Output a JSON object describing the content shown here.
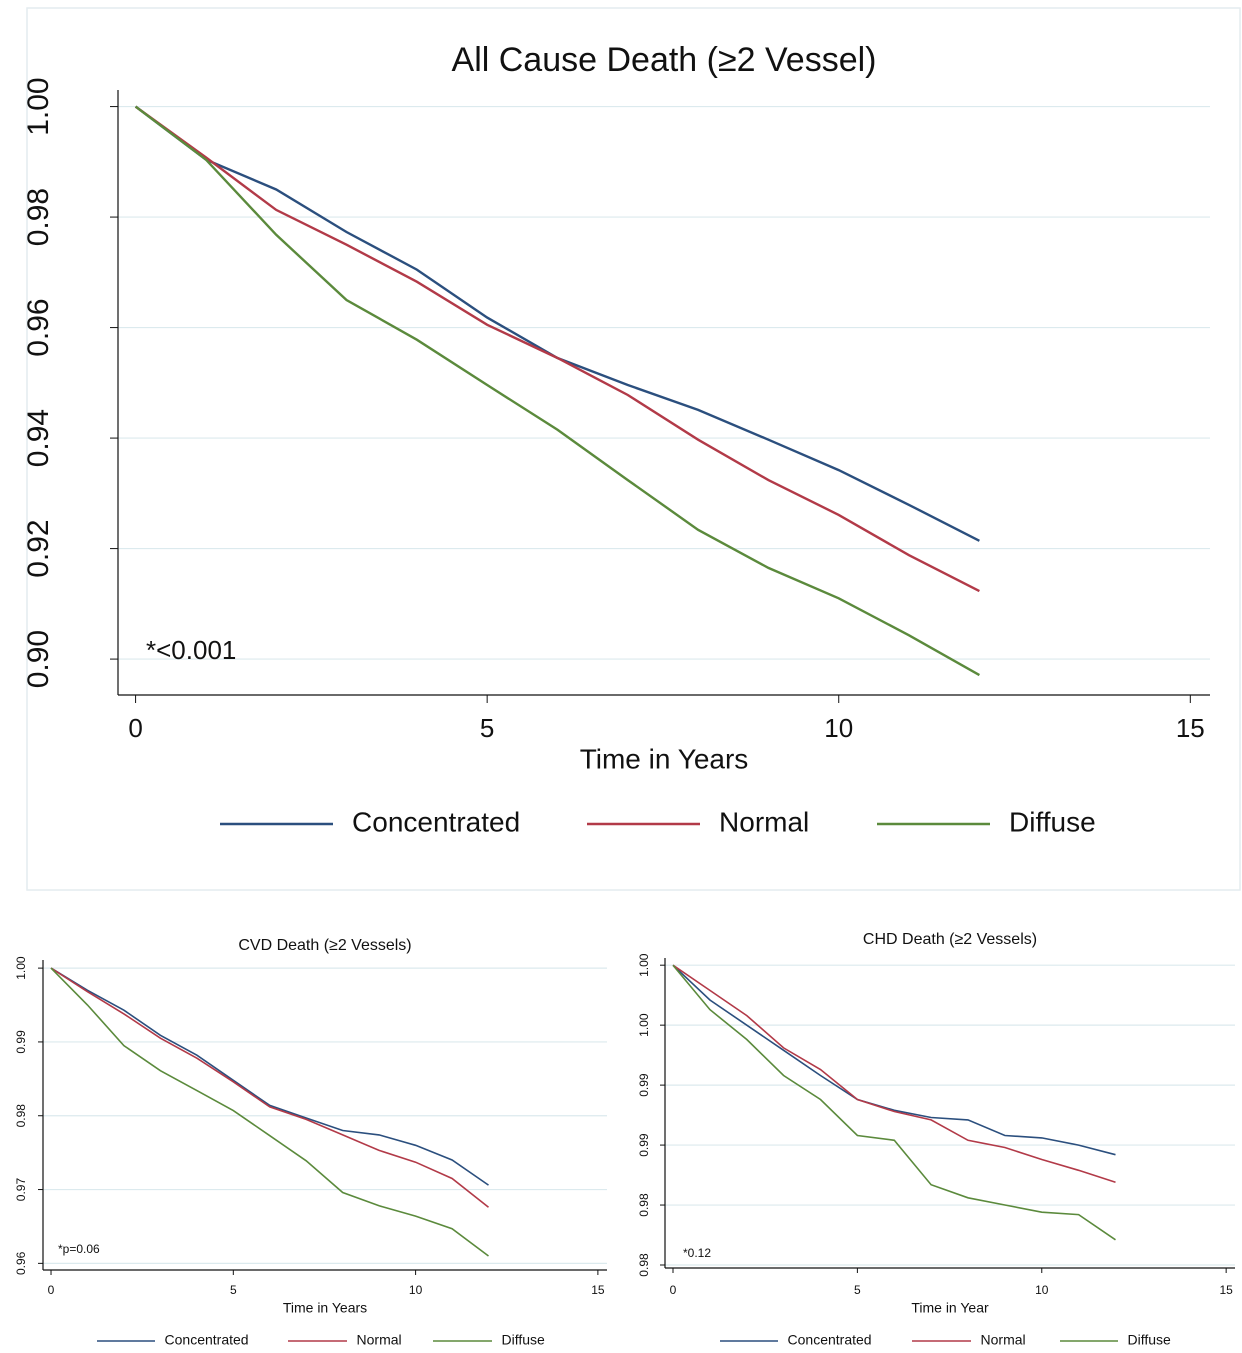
{
  "chart_data": [
    {
      "type": "line",
      "title": "All Cause Death (≥2 Vessel)",
      "x_label": "Time in Years",
      "annotation": "*<0.001",
      "x": [
        0,
        1,
        2,
        3,
        4,
        5,
        6,
        7,
        8,
        9,
        10,
        11,
        12
      ],
      "series": [
        {
          "name": "Concentrated",
          "color": "#2b4f7e",
          "values": [
            1.0,
            0.9904,
            0.985,
            0.9773,
            0.9705,
            0.9618,
            0.9545,
            0.9496,
            0.9451,
            0.9397,
            0.9342,
            0.9279,
            0.9214
          ]
        },
        {
          "name": "Normal",
          "color": "#b23a48",
          "values": [
            1.0,
            0.9908,
            0.9813,
            0.975,
            0.9683,
            0.9605,
            0.9545,
            0.9478,
            0.9397,
            0.9324,
            0.9261,
            0.9188,
            0.9123
          ]
        },
        {
          "name": "Diffuse",
          "color": "#5b8a3c",
          "values": [
            1.0,
            0.9904,
            0.9768,
            0.965,
            0.9578,
            0.9496,
            0.9415,
            0.9324,
            0.9234,
            0.9165,
            0.911,
            0.9043,
            0.8971
          ]
        }
      ],
      "xlim": [
        -0.25,
        15.28
      ],
      "ylim": [
        0.8935,
        1.003
      ],
      "xticks": [
        0,
        5,
        10,
        15
      ],
      "yticks": [
        {
          "value": 0.9,
          "label": "0.90"
        },
        0.92,
        0.94,
        0.96,
        0.98,
        {
          "value": 1.0,
          "label": "1.00"
        }
      ],
      "grid": true,
      "legend": "bottom"
    },
    {
      "type": "line",
      "title": "CVD Death (≥2 Vessels)",
      "x_label": "Time in Years",
      "annotation": "*p=0.06",
      "x": [
        0,
        1,
        2,
        3,
        4,
        5,
        6,
        7,
        8,
        9,
        10,
        11,
        12
      ],
      "series": [
        {
          "name": "Concentrated",
          "color": "#2b4f7e",
          "values": [
            1.0,
            0.997,
            0.9943,
            0.9909,
            0.9882,
            0.9848,
            0.9814,
            0.9797,
            0.978,
            0.9774,
            0.976,
            0.974,
            0.9706
          ]
        },
        {
          "name": "Normal",
          "color": "#b23a48",
          "values": [
            1.0,
            0.9968,
            0.9938,
            0.9905,
            0.9878,
            0.9846,
            0.9812,
            0.9795,
            0.9774,
            0.9753,
            0.9737,
            0.9715,
            0.9676
          ]
        },
        {
          "name": "Diffuse",
          "color": "#5b8a3c",
          "values": [
            1.0,
            0.995,
            0.9895,
            0.9861,
            0.9834,
            0.9807,
            0.9773,
            0.9739,
            0.9696,
            0.9678,
            0.9664,
            0.9647,
            0.961
          ]
        }
      ],
      "xlim": [
        -0.22,
        15.25
      ],
      "ylim": [
        0.9591,
        1.0011
      ],
      "xticks": [
        0,
        5,
        10,
        15
      ],
      "yticks": [
        0.96,
        0.97,
        0.98,
        0.99,
        {
          "value": 1.0,
          "label": "1.00"
        }
      ],
      "grid": true,
      "legend": "bottom"
    },
    {
      "type": "line",
      "title": "CHD Death (≥2 Vessels)",
      "x_label": "Time in Year",
      "annotation": "*0.12",
      "x": [
        0,
        1,
        2,
        3,
        4,
        5,
        6,
        7,
        8,
        9,
        10,
        11,
        12
      ],
      "series": [
        {
          "name": "Concentrated",
          "color": "#2b4f7e",
          "values": [
            1.0,
            0.9971,
            0.995,
            0.9929,
            0.9908,
            0.9888,
            0.9879,
            0.9873,
            0.9871,
            0.9858,
            0.9856,
            0.985,
            0.9842
          ]
        },
        {
          "name": "Normal",
          "color": "#b23a48",
          "values": [
            1.0,
            0.9979,
            0.9958,
            0.9931,
            0.9913,
            0.9888,
            0.9878,
            0.9871,
            0.9854,
            0.9848,
            0.9838,
            0.9829,
            0.9819
          ]
        },
        {
          "name": "Diffuse",
          "color": "#5b8a3c",
          "values": [
            1.0,
            0.9963,
            0.9938,
            0.9908,
            0.9888,
            0.9858,
            0.9854,
            0.9817,
            0.9806,
            0.98,
            0.9794,
            0.9792,
            0.9771
          ]
        }
      ],
      "xlim": [
        -0.217,
        15.24
      ],
      "ylim": [
        0.97475,
        1.0006
      ],
      "xticks": [
        0,
        5,
        10,
        15
      ],
      "yticks": [
        {
          "value": 0.975,
          "label": "0.98"
        },
        {
          "value": 0.98,
          "label": "0.98"
        },
        {
          "value": 0.985,
          "label": "0.99"
        },
        {
          "value": 0.99,
          "label": "0.99"
        },
        {
          "value": 0.995,
          "label": "1.00"
        },
        {
          "value": 1.0,
          "label": "1.00"
        }
      ],
      "grid": true,
      "legend": "bottom"
    }
  ]
}
